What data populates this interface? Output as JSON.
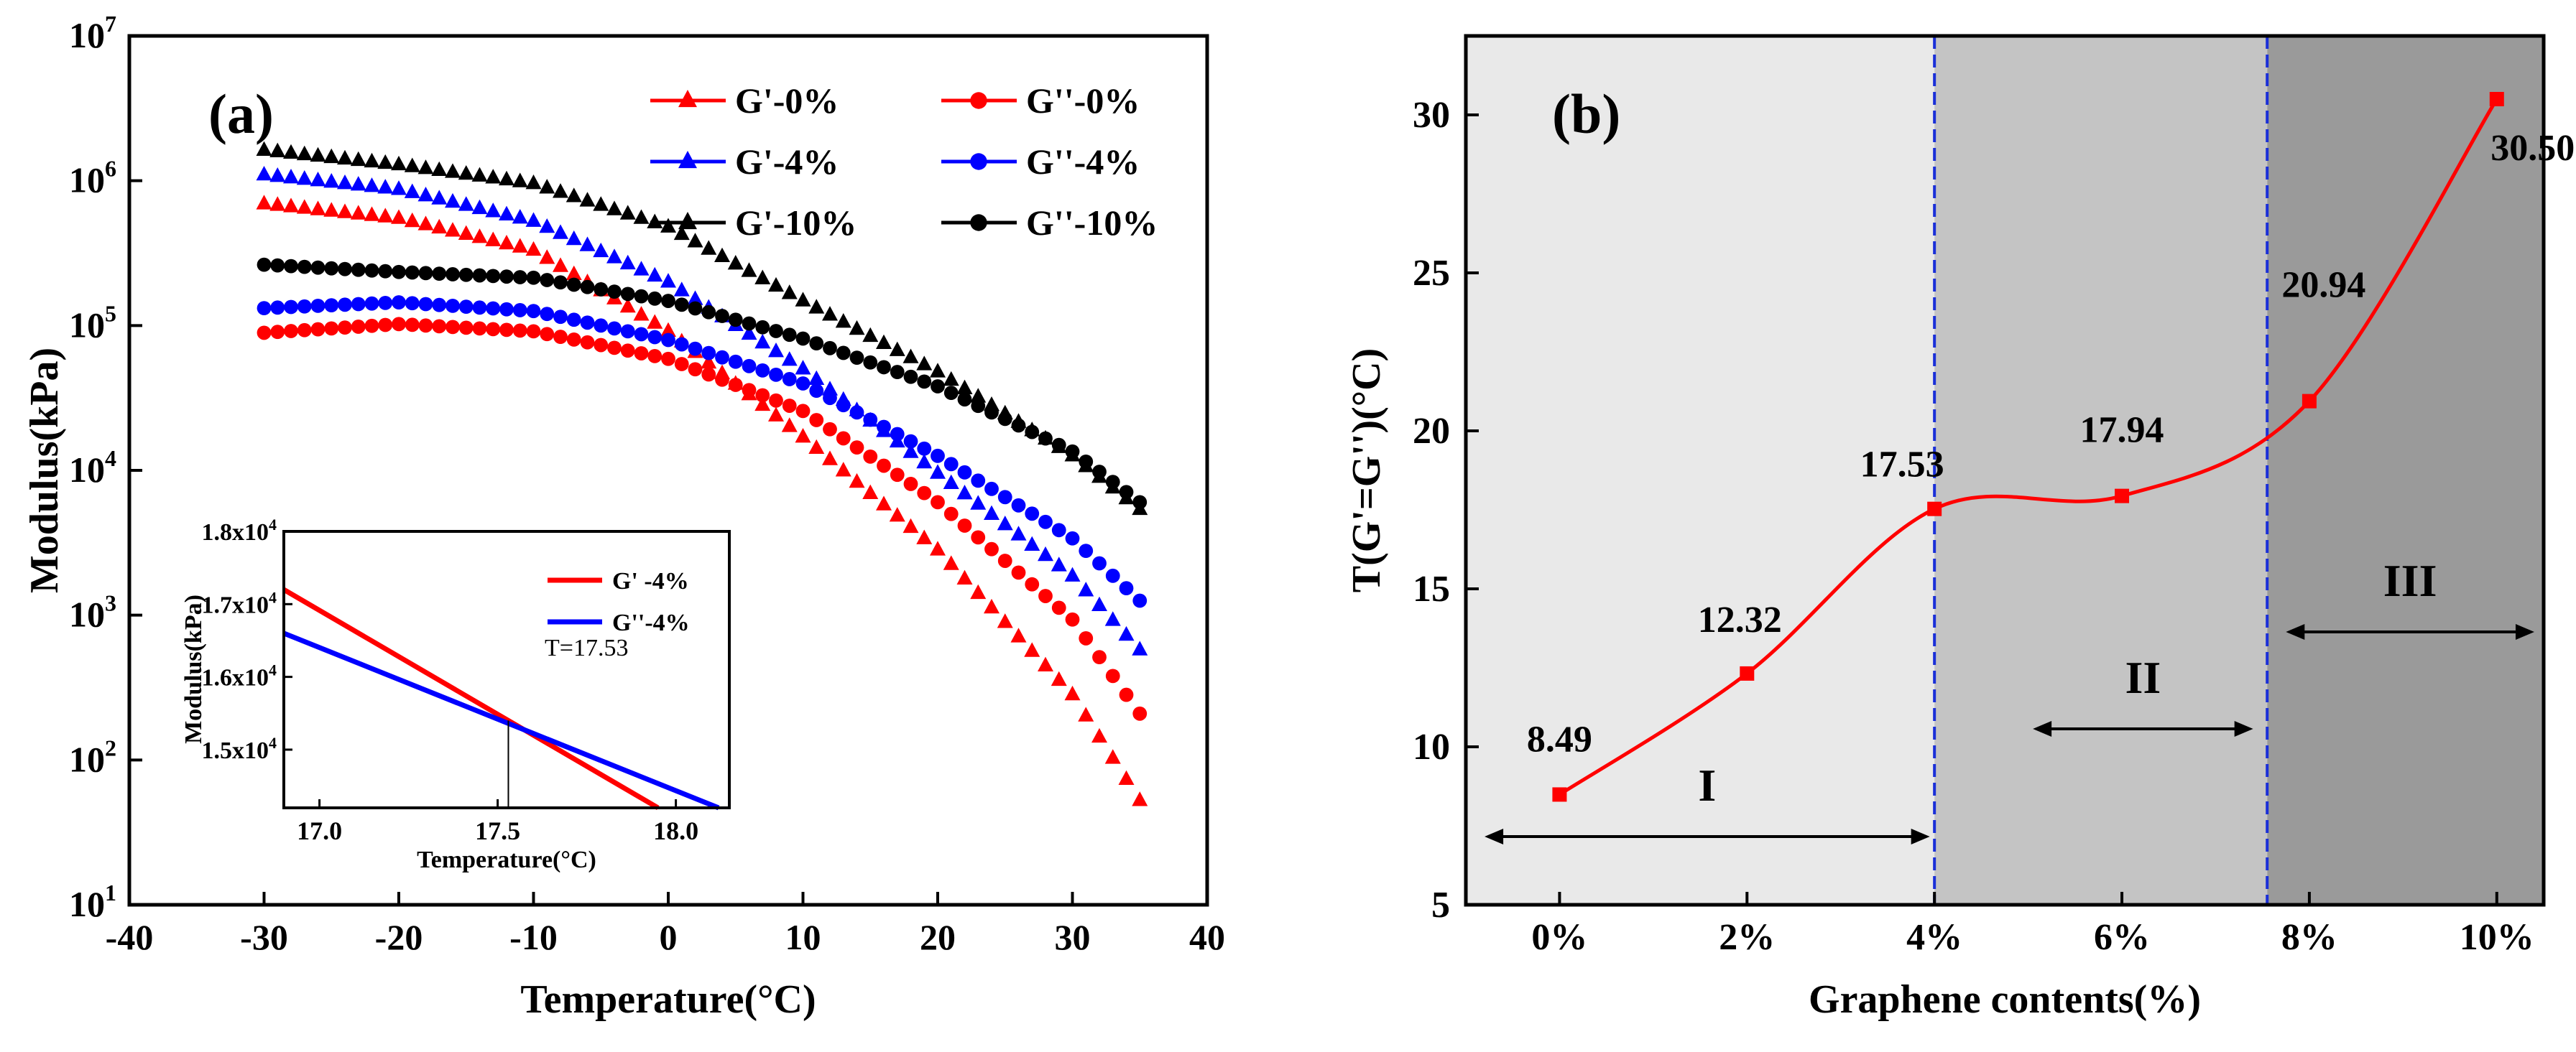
{
  "chart_data": [
    {
      "panel": "(a)",
      "type": "scatter",
      "xlabel": "Temperature(°C)",
      "ylabel": "Modulus(kPa)",
      "xlim": [
        -40,
        40
      ],
      "ylim_log10": [
        1,
        7
      ],
      "y_scale": "log",
      "x_ticks": [
        "-40",
        "-30",
        "-20",
        "-10",
        "0",
        "10",
        "20",
        "30",
        "40"
      ],
      "legend_position": "top-right",
      "series": [
        {
          "name": "G'-0%",
          "color": "#ff0000",
          "marker": "triangle",
          "x": [
            -30,
            -20,
            -10,
            0,
            10,
            20,
            30,
            35
          ],
          "log10y": [
            5.84,
            5.74,
            5.52,
            4.96,
            4.23,
            3.45,
            2.45,
            1.72
          ]
        },
        {
          "name": "G''-0%",
          "color": "#ff0000",
          "marker": "circle",
          "x": [
            -30,
            -20,
            -10,
            0,
            10,
            20,
            30,
            35
          ],
          "log10y": [
            4.95,
            5.01,
            4.96,
            4.77,
            4.41,
            3.78,
            2.97,
            2.32
          ]
        },
        {
          "name": "G'-4%",
          "color": "#0000ff",
          "marker": "triangle",
          "x": [
            -30,
            -20,
            -10,
            0,
            10,
            20,
            30,
            35
          ],
          "log10y": [
            6.04,
            5.94,
            5.72,
            5.3,
            4.7,
            3.98,
            3.27,
            2.76
          ]
        },
        {
          "name": "G''-4%",
          "color": "#0000ff",
          "marker": "circle",
          "x": [
            -30,
            -20,
            -10,
            0,
            10,
            20,
            30,
            35
          ],
          "log10y": [
            5.12,
            5.16,
            5.1,
            4.9,
            4.6,
            4.1,
            3.53,
            3.1
          ]
        },
        {
          "name": "G'-10%",
          "color": "#000000",
          "marker": "triangle",
          "x": [
            -30,
            -20,
            -10,
            0,
            10,
            20,
            30,
            35
          ],
          "log10y": [
            6.21,
            6.11,
            5.98,
            5.68,
            5.17,
            4.68,
            4.1,
            3.73
          ]
        },
        {
          "name": "G''-10%",
          "color": "#000000",
          "marker": "circle",
          "x": [
            -30,
            -20,
            -10,
            0,
            10,
            20,
            30,
            35
          ],
          "log10y": [
            5.42,
            5.37,
            5.33,
            5.17,
            4.91,
            4.58,
            4.13,
            3.78
          ]
        }
      ],
      "inset": {
        "type": "line",
        "xlabel": "Temperature(°C)",
        "ylabel": "Modulus(kPa)",
        "xlim": [
          16.9,
          18.15
        ],
        "ylim": [
          14200,
          18000
        ],
        "x_ticks": [
          17.0,
          17.5,
          18.0
        ],
        "y_ticks": [
          15000,
          16000,
          17000,
          18000
        ],
        "annotation": "T=17.53",
        "crossing_x": 17.53,
        "series": [
          {
            "name": "G' -4%",
            "color": "#ff0000",
            "x": [
              16.9,
              17.95
            ],
            "y": [
              17200,
              14200
            ]
          },
          {
            "name": "G''-4%",
            "color": "#0000ff",
            "x": [
              16.9,
              18.12
            ],
            "y": [
              16600,
              14200
            ]
          }
        ]
      }
    },
    {
      "panel": "(b)",
      "type": "line",
      "xlabel": "Graphene contents(%)",
      "ylabel": "T(G'=G'')(°C)",
      "categories": [
        "0%",
        "2%",
        "4%",
        "6%",
        "8%",
        "10%"
      ],
      "x": [
        0,
        2,
        4,
        6,
        8,
        10
      ],
      "values": [
        8.49,
        12.32,
        17.53,
        17.94,
        20.94,
        30.5
      ],
      "data_labels": [
        "8.49",
        "12.32",
        "17.53",
        "17.94",
        "20.94",
        "30.50"
      ],
      "xlim": [
        -1,
        10.5
      ],
      "ylim": [
        5,
        32.5
      ],
      "y_ticks": [
        5,
        10,
        15,
        20,
        25,
        30
      ],
      "color": "#ff0000",
      "region_boundaries": [
        4,
        7.55
      ],
      "regions": [
        {
          "label": "I",
          "from": -0.8,
          "to": 3.95,
          "shade": "#e9e9e9"
        },
        {
          "label": "II",
          "from": 5.05,
          "to": 7.4,
          "shade": "#c4c4c4"
        },
        {
          "label": "III",
          "from": 7.75,
          "to": 10.4,
          "shade": "#9a9a9a"
        }
      ]
    }
  ]
}
